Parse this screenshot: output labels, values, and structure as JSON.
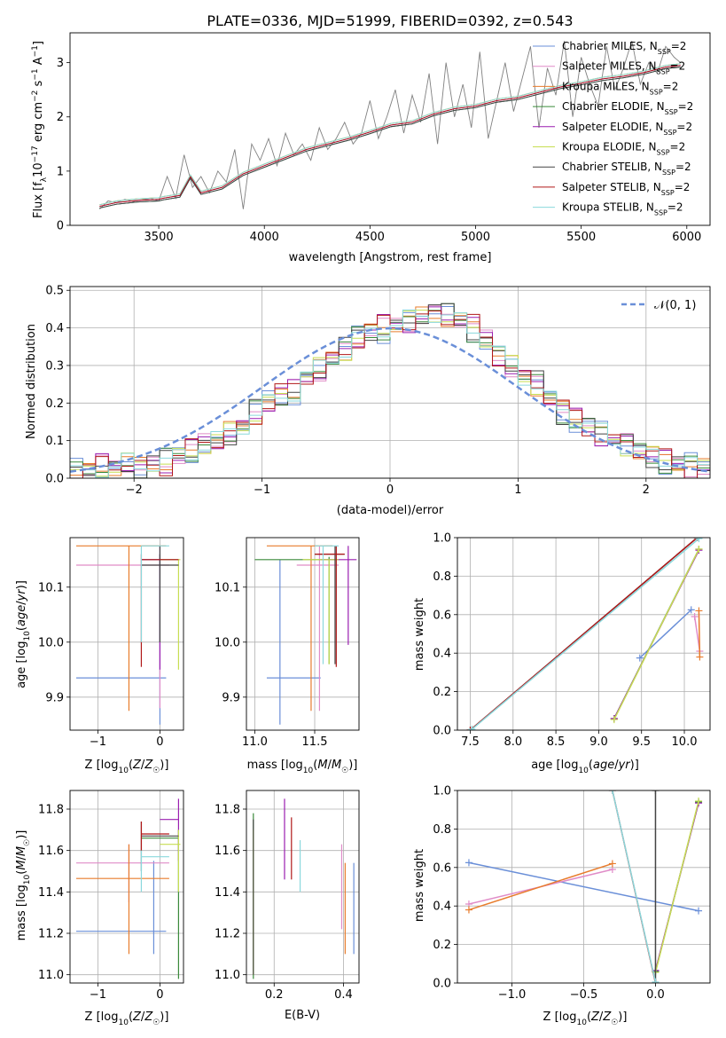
{
  "figure_title": "PLATE=0336, MJD=51999, FIBERID=0392, z=0.543",
  "colors": {
    "Chabrier MILES": "#6a8fd8",
    "Salpeter MILES": "#e08cc8",
    "Kroupa MILES": "#e87c2c",
    "Chabrier ELODIE": "#3a8a3a",
    "Salpeter ELODIE": "#9a1eb0",
    "Kroupa ELODIE": "#c7de52",
    "Chabrier STELIB": "#444444",
    "Salpeter STELIB": "#b01818",
    "Kroupa STELIB": "#8ad8dc",
    "data": "#808080",
    "grid": "#b0b0b0"
  },
  "chart_data": [
    {
      "id": "spectrum",
      "type": "line",
      "title": "PLATE=0336, MJD=51999, FIBERID=0392, z=0.543",
      "xlabel": "wavelength [Angstrom, rest frame]",
      "ylabel": "Flux [f_λ 10^-17 erg cm^-2 s^-1 A^-1]",
      "xlim": [
        3080,
        6110
      ],
      "ylim": [
        0,
        3.55
      ],
      "xticks": [
        3500,
        4000,
        4500,
        5000,
        5500,
        6000
      ],
      "yticks": [
        0,
        1,
        2,
        3
      ],
      "grid": false,
      "legend_position": "upper-right",
      "legend": [
        "Chabrier MILES, N_SSP=2",
        "Salpeter MILES, N_SSP=2",
        "Kroupa MILES, N_SSP=2",
        "Chabrier ELODIE, N_SSP=2",
        "Salpeter ELODIE, N_SSP=2",
        "Kroupa ELODIE, N_SSP=2",
        "Chabrier STELIB, N_SSP=2",
        "Salpeter STELIB, N_SSP=2",
        "Kroupa STELIB, N_SSP=2"
      ],
      "data_x": [
        3220,
        3260,
        3300,
        3340,
        3380,
        3420,
        3460,
        3500,
        3540,
        3580,
        3620,
        3660,
        3700,
        3740,
        3780,
        3820,
        3860,
        3900,
        3940,
        3980,
        4020,
        4060,
        4100,
        4140,
        4180,
        4220,
        4260,
        4300,
        4340,
        4380,
        4420,
        4460,
        4500,
        4540,
        4580,
        4620,
        4660,
        4700,
        4740,
        4780,
        4820,
        4860,
        4900,
        4940,
        4980,
        5020,
        5060,
        5100,
        5140,
        5180,
        5220,
        5260,
        5300,
        5340,
        5380,
        5420,
        5460,
        5500,
        5540,
        5580,
        5620,
        5660,
        5700,
        5740,
        5780,
        5820,
        5860,
        5900,
        5940,
        5970
      ],
      "data_y": [
        0.3,
        0.45,
        0.42,
        0.48,
        0.44,
        0.47,
        0.5,
        0.45,
        0.9,
        0.5,
        1.3,
        0.7,
        0.9,
        0.6,
        1.0,
        0.8,
        1.4,
        0.3,
        1.5,
        1.2,
        1.6,
        1.1,
        1.7,
        1.3,
        1.5,
        1.2,
        1.8,
        1.4,
        1.6,
        1.9,
        1.5,
        1.7,
        2.3,
        1.6,
        2.0,
        2.5,
        1.7,
        2.4,
        1.9,
        2.8,
        1.5,
        3.0,
        2.0,
        2.6,
        1.8,
        3.2,
        1.6,
        2.3,
        3.0,
        2.1,
        2.7,
        3.3,
        1.8,
        2.9,
        2.4,
        3.4,
        2.0,
        3.1,
        2.6,
        2.2,
        3.3,
        2.5,
        2.9,
        3.4,
        2.6,
        3.0,
        2.8,
        3.3,
        3.1,
        3.0
      ],
      "model_x": [
        3220,
        3300,
        3400,
        3500,
        3520,
        3600,
        3650,
        3700,
        3800,
        3900,
        4000,
        4100,
        4200,
        4300,
        4400,
        4500,
        4600,
        4700,
        4800,
        4900,
        5000,
        5100,
        5200,
        5300,
        5400,
        5500,
        5600,
        5700,
        5800,
        5900,
        5970
      ],
      "model_y": [
        0.35,
        0.42,
        0.46,
        0.48,
        0.5,
        0.55,
        0.9,
        0.6,
        0.7,
        0.95,
        1.1,
        1.25,
        1.4,
        1.5,
        1.6,
        1.72,
        1.85,
        1.9,
        2.05,
        2.15,
        2.2,
        2.3,
        2.35,
        2.45,
        2.55,
        2.62,
        2.7,
        2.75,
        2.82,
        2.92,
        2.95
      ]
    },
    {
      "id": "residuals",
      "type": "line",
      "xlabel": "(data-model)/error",
      "ylabel": "Normed distribution",
      "xlim": [
        -2.5,
        2.5
      ],
      "ylim": [
        0,
        0.51
      ],
      "xticks": [
        -2,
        -1,
        0,
        1,
        2
      ],
      "yticks": [
        0.0,
        0.1,
        0.2,
        0.3,
        0.4,
        0.5
      ],
      "grid": true,
      "legend_position": "upper-right",
      "legend": [
        "𝒩(0, 1)"
      ],
      "bin_edges": [
        -2.5,
        -2.4,
        -2.3,
        -2.2,
        -2.1,
        -2.0,
        -1.9,
        -1.8,
        -1.7,
        -1.6,
        -1.5,
        -1.4,
        -1.3,
        -1.2,
        -1.1,
        -1.0,
        -0.9,
        -0.8,
        -0.7,
        -0.6,
        -0.5,
        -0.4,
        -0.3,
        -0.2,
        -0.1,
        0.0,
        0.1,
        0.2,
        0.3,
        0.4,
        0.5,
        0.6,
        0.7,
        0.8,
        0.9,
        1.0,
        1.1,
        1.2,
        1.3,
        1.4,
        1.5,
        1.6,
        1.7,
        1.8,
        1.9,
        2.0,
        2.1,
        2.2,
        2.3,
        2.4,
        2.5
      ],
      "hist_base": [
        0.01,
        0.02,
        0.03,
        0.03,
        0.04,
        0.03,
        0.04,
        0.04,
        0.06,
        0.07,
        0.09,
        0.1,
        0.12,
        0.14,
        0.17,
        0.2,
        0.22,
        0.23,
        0.27,
        0.29,
        0.32,
        0.34,
        0.37,
        0.39,
        0.4,
        0.41,
        0.42,
        0.43,
        0.44,
        0.43,
        0.42,
        0.4,
        0.37,
        0.33,
        0.3,
        0.27,
        0.25,
        0.21,
        0.18,
        0.16,
        0.14,
        0.12,
        0.1,
        0.09,
        0.07,
        0.06,
        0.05,
        0.04,
        0.03,
        0.03
      ],
      "gaussian_label": "𝒩(0, 1)"
    },
    {
      "id": "age-vs-Z",
      "type": "scatter",
      "xlabel": "Z [log10(Z/Z☉)]",
      "ylabel": "age [log10(age/yr)]",
      "xlim": [
        -1.45,
        0.38
      ],
      "ylim": [
        9.84,
        10.19
      ],
      "xticks": [
        -1,
        0
      ],
      "yticks": [
        9.9,
        10.0,
        10.1
      ],
      "grid": true,
      "points": [
        {
          "series": "Chabrier MILES",
          "x": 0.0,
          "y": 9.935,
          "x_lo": -1.35,
          "x_hi": 0.1,
          "y_lo": 9.85,
          "y_hi": 10.175
        },
        {
          "series": "Salpeter MILES",
          "x": 0.0,
          "y": 10.14,
          "x_lo": -1.35,
          "x_hi": 0.15,
          "y_lo": 9.88,
          "y_hi": 10.175
        },
        {
          "series": "Kroupa MILES",
          "x": -0.5,
          "y": 10.175,
          "x_lo": -1.35,
          "x_hi": 0.1,
          "y_lo": 9.875,
          "y_hi": 10.175
        },
        {
          "series": "Chabrier ELODIE",
          "x": 0.0,
          "y": 10.15,
          "x_lo": -0.3,
          "x_hi": 0.3,
          "y_lo": 10.0,
          "y_hi": 10.16
        },
        {
          "series": "Salpeter ELODIE",
          "x": 0.0,
          "y": 10.15,
          "x_lo": -0.3,
          "x_hi": 0.3,
          "y_lo": 9.95,
          "y_hi": 10.16
        },
        {
          "series": "Kroupa ELODIE",
          "x": 0.3,
          "y": 10.15,
          "x_lo": 0.0,
          "x_hi": 0.33,
          "y_lo": 9.95,
          "y_hi": 10.15
        },
        {
          "series": "Chabrier STELIB",
          "x": 0.0,
          "y": 10.14,
          "x_lo": -0.3,
          "x_hi": 0.3,
          "y_lo": 10.0,
          "y_hi": 10.175
        },
        {
          "series": "Salpeter STELIB",
          "x": -0.3,
          "y": 10.15,
          "x_lo": -0.3,
          "x_hi": 0.3,
          "y_lo": 9.955,
          "y_hi": 10.16
        },
        {
          "series": "Kroupa STELIB",
          "x": -0.3,
          "y": 10.175,
          "x_lo": -0.3,
          "x_hi": 0.15,
          "y_lo": 10.0,
          "y_hi": 10.175
        }
      ]
    },
    {
      "id": "age-vs-mass",
      "type": "scatter",
      "xlabel": "mass [log10(M/M☉)]",
      "ylabel": "",
      "xlim": [
        10.93,
        11.87
      ],
      "ylim": [
        9.84,
        10.19
      ],
      "xticks": [
        11.0,
        11.5
      ],
      "yticks": [
        9.9,
        10.0,
        10.1
      ],
      "grid": true,
      "points": [
        {
          "series": "Chabrier MILES",
          "x": 11.21,
          "y": 9.935,
          "x_lo": 11.1,
          "x_hi": 11.55,
          "y_lo": 9.85,
          "y_hi": 10.15
        },
        {
          "series": "Salpeter MILES",
          "x": 11.54,
          "y": 10.14,
          "x_lo": 11.35,
          "x_hi": 11.7,
          "y_lo": 9.875,
          "y_hi": 10.175
        },
        {
          "series": "Kroupa MILES",
          "x": 11.47,
          "y": 10.175,
          "x_lo": 11.1,
          "x_hi": 11.65,
          "y_lo": 9.875,
          "y_hi": 10.175
        },
        {
          "series": "Chabrier ELODIE",
          "x": 11.62,
          "y": 10.15,
          "x_lo": 11.0,
          "x_hi": 11.7,
          "y_lo": 9.96,
          "y_hi": 10.155
        },
        {
          "series": "Salpeter ELODIE",
          "x": 11.78,
          "y": 10.15,
          "x_lo": 11.55,
          "x_hi": 11.85,
          "y_lo": 9.995,
          "y_hi": 10.175
        },
        {
          "series": "Kroupa ELODIE",
          "x": 11.62,
          "y": 10.15,
          "x_lo": 11.4,
          "x_hi": 11.7,
          "y_lo": 9.96,
          "y_hi": 10.15
        },
        {
          "series": "Chabrier STELIB",
          "x": 11.67,
          "y": 10.16,
          "x_lo": 11.5,
          "x_hi": 11.75,
          "y_lo": 9.96,
          "y_hi": 10.175
        },
        {
          "series": "Salpeter STELIB",
          "x": 11.68,
          "y": 10.16,
          "x_lo": 11.5,
          "x_hi": 11.75,
          "y_lo": 9.955,
          "y_hi": 10.175
        },
        {
          "series": "Kroupa STELIB",
          "x": 11.57,
          "y": 10.175,
          "x_lo": 11.5,
          "x_hi": 11.7,
          "y_lo": 9.96,
          "y_hi": 10.175
        }
      ]
    },
    {
      "id": "mass-weight-vs-age",
      "type": "line",
      "xlabel": "age [log10(age/yr)]",
      "ylabel": "mass weight",
      "xlim": [
        7.35,
        10.3
      ],
      "ylim": [
        0.0,
        1.0
      ],
      "xticks": [
        7.5,
        8.0,
        8.5,
        9.0,
        9.5,
        10.0
      ],
      "yticks": [
        0.0,
        0.2,
        0.4,
        0.6,
        0.8,
        1.0
      ],
      "grid": true,
      "series": [
        {
          "series": "Chabrier MILES",
          "x": [
            9.48,
            10.08
          ],
          "y": [
            0.375,
            0.625
          ]
        },
        {
          "series": "Salpeter MILES",
          "x": [
            10.12,
            10.18
          ],
          "y": [
            0.59,
            0.41
          ]
        },
        {
          "series": "Kroupa MILES",
          "x": [
            10.17,
            10.18
          ],
          "y": [
            0.62,
            0.38
          ]
        },
        {
          "series": "Chabrier ELODIE",
          "x": [
            9.18,
            10.17
          ],
          "y": [
            0.06,
            0.94
          ]
        },
        {
          "series": "Salpeter ELODIE",
          "x": [
            9.18,
            10.17
          ],
          "y": [
            0.06,
            0.935
          ]
        },
        {
          "series": "Kroupa ELODIE",
          "x": [
            9.18,
            10.17
          ],
          "y": [
            0.055,
            0.94
          ]
        },
        {
          "series": "Chabrier STELIB",
          "x": [
            7.5,
            10.15
          ],
          "y": [
            0.0,
            1.0
          ]
        },
        {
          "series": "Salpeter STELIB",
          "x": [
            7.5,
            10.15
          ],
          "y": [
            0.0,
            1.0
          ]
        },
        {
          "series": "Kroupa STELIB",
          "x": [
            7.52,
            10.17
          ],
          "y": [
            0.005,
            0.995
          ]
        }
      ]
    },
    {
      "id": "mass-vs-Z",
      "type": "scatter",
      "xlabel": "Z [log10(Z/Z☉)]",
      "ylabel": "mass [log10(M/M☉)]",
      "xlim": [
        -1.45,
        0.38
      ],
      "ylim": [
        10.96,
        11.89
      ],
      "xticks": [
        -1,
        0
      ],
      "yticks": [
        11.0,
        11.2,
        11.4,
        11.6,
        11.8
      ],
      "grid": true,
      "points": [
        {
          "series": "Chabrier MILES",
          "x": -0.1,
          "y": 11.21,
          "x_lo": -1.35,
          "x_hi": 0.1,
          "y_lo": 11.1,
          "y_hi": 11.55
        },
        {
          "series": "Salpeter MILES",
          "x": -0.5,
          "y": 11.54,
          "x_lo": -1.35,
          "x_hi": 0.15,
          "y_lo": 11.35,
          "y_hi": 11.63
        },
        {
          "series": "Kroupa MILES",
          "x": -0.5,
          "y": 11.465,
          "x_lo": -1.35,
          "x_hi": 0.15,
          "y_lo": 11.1,
          "y_hi": 11.63
        },
        {
          "series": "Chabrier ELODIE",
          "x": 0.3,
          "y": 11.66,
          "x_lo": -0.3,
          "x_hi": 0.3,
          "y_lo": 10.98,
          "y_hi": 11.7
        },
        {
          "series": "Salpeter ELODIE",
          "x": 0.3,
          "y": 11.75,
          "x_lo": 0.0,
          "x_hi": 0.3,
          "y_lo": 11.55,
          "y_hi": 11.85
        },
        {
          "series": "Kroupa ELODIE",
          "x": 0.3,
          "y": 11.63,
          "x_lo": 0.0,
          "x_hi": 0.33,
          "y_lo": 11.4,
          "y_hi": 11.7
        },
        {
          "series": "Chabrier STELIB",
          "x": -0.3,
          "y": 11.67,
          "x_lo": -0.3,
          "x_hi": 0.3,
          "y_lo": 11.5,
          "y_hi": 11.74
        },
        {
          "series": "Salpeter STELIB",
          "x": -0.3,
          "y": 11.68,
          "x_lo": -0.3,
          "x_hi": 0.15,
          "y_lo": 11.6,
          "y_hi": 11.74
        },
        {
          "series": "Kroupa STELIB",
          "x": -0.3,
          "y": 11.57,
          "x_lo": -0.3,
          "x_hi": 0.15,
          "y_lo": 11.4,
          "y_hi": 11.6
        }
      ]
    },
    {
      "id": "mass-vs-ebv",
      "type": "scatter",
      "xlabel": "E(B-V)",
      "ylabel": "",
      "xlim": [
        0.12,
        0.445
      ],
      "ylim": [
        10.96,
        11.89
      ],
      "xticks": [
        0.2,
        0.4
      ],
      "yticks": [
        11.0,
        11.2,
        11.4,
        11.6,
        11.8
      ],
      "grid": true,
      "points": [
        {
          "series": "Chabrier MILES",
          "x": 0.43,
          "y": 11.21,
          "y_lo": 11.1,
          "y_hi": 11.54
        },
        {
          "series": "Salpeter MILES",
          "x": 0.395,
          "y": 11.54,
          "y_lo": 11.22,
          "y_hi": 11.63
        },
        {
          "series": "Kroupa MILES",
          "x": 0.405,
          "y": 11.465,
          "y_lo": 11.1,
          "y_hi": 11.54
        },
        {
          "series": "Chabrier ELODIE",
          "x": 0.14,
          "y": 11.66,
          "y_lo": 10.98,
          "y_hi": 11.78
        },
        {
          "series": "Salpeter ELODIE",
          "x": 0.23,
          "y": 11.75,
          "y_lo": 11.46,
          "y_hi": 11.85
        },
        {
          "series": "Kroupa ELODIE",
          "x": 0.14,
          "y": 11.63,
          "y_lo": 11.0,
          "y_hi": 11.7
        },
        {
          "series": "Chabrier STELIB",
          "x": 0.14,
          "y": 11.67,
          "y_lo": 11.0,
          "y_hi": 11.75
        },
        {
          "series": "Salpeter STELIB",
          "x": 0.25,
          "y": 11.68,
          "y_lo": 11.46,
          "y_hi": 11.76
        },
        {
          "series": "Kroupa STELIB",
          "x": 0.275,
          "y": 11.57,
          "y_lo": 11.4,
          "y_hi": 11.65
        }
      ]
    },
    {
      "id": "mass-weight-vs-Z",
      "type": "line",
      "xlabel": "Z [log10(Z/Z☉)]",
      "ylabel": "mass weight",
      "xlim": [
        -1.38,
        0.38
      ],
      "ylim": [
        0.0,
        1.0
      ],
      "xticks": [
        -1.0,
        -0.5,
        0.0
      ],
      "yticks": [
        0.0,
        0.2,
        0.4,
        0.6,
        0.8,
        1.0
      ],
      "grid": true,
      "series": [
        {
          "series": "Chabrier MILES",
          "x": [
            -1.3,
            0.3
          ],
          "y": [
            0.625,
            0.375
          ]
        },
        {
          "series": "Salpeter MILES",
          "x": [
            -1.3,
            -0.3
          ],
          "y": [
            0.41,
            0.59
          ]
        },
        {
          "series": "Kroupa MILES",
          "x": [
            -1.3,
            -0.3
          ],
          "y": [
            0.38,
            0.62
          ]
        },
        {
          "series": "Chabrier ELODIE",
          "x": [
            0.0,
            0.3
          ],
          "y": [
            0.06,
            0.94
          ]
        },
        {
          "series": "Salpeter ELODIE",
          "x": [
            0.0,
            0.3
          ],
          "y": [
            0.065,
            0.935
          ]
        },
        {
          "series": "Kroupa ELODIE",
          "x": [
            0.0,
            0.3
          ],
          "y": [
            0.055,
            0.945
          ]
        },
        {
          "series": "Chabrier STELIB",
          "x": [
            0.0,
            0.0
          ],
          "y": [
            0.0,
            1.0
          ]
        },
        {
          "series": "Salpeter STELIB",
          "x": [
            -0.3,
            0.0
          ],
          "y": [
            1.0,
            0.0
          ]
        },
        {
          "series": "Kroupa STELIB",
          "x": [
            -0.3,
            0.0
          ],
          "y": [
            1.0,
            0.005
          ]
        }
      ]
    }
  ]
}
